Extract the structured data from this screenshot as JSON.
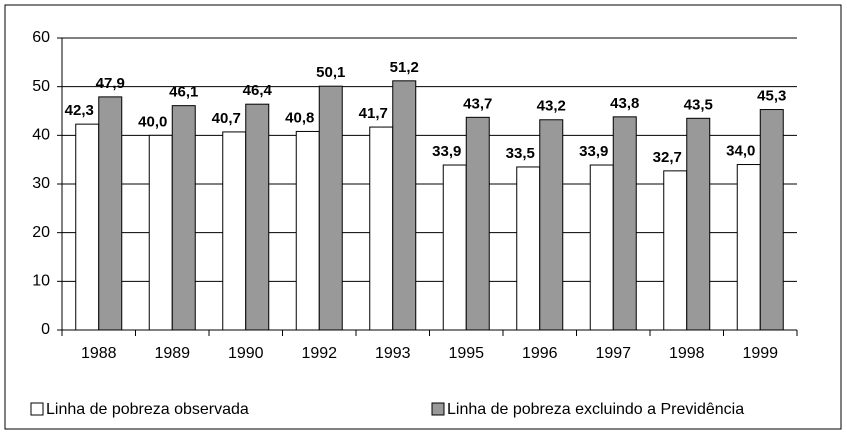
{
  "chart_data": {
    "type": "bar",
    "categories": [
      "1988",
      "1989",
      "1990",
      "1992",
      "1993",
      "1995",
      "1996",
      "1997",
      "1998",
      "1999"
    ],
    "series": [
      {
        "name": "Linha de pobreza observada",
        "color": "#ffffff",
        "values": [
          42.3,
          40.0,
          40.7,
          40.8,
          41.7,
          33.9,
          33.5,
          33.9,
          32.7,
          34.0
        ],
        "value_labels": [
          "42,3",
          "40,0",
          "40,7",
          "40,8",
          "41,7",
          "33,9",
          "33,5",
          "33,9",
          "32,7",
          "34,0"
        ]
      },
      {
        "name": "Linha de pobreza excluindo a Previdência",
        "color": "#999999",
        "values": [
          47.9,
          46.1,
          46.4,
          50.1,
          51.2,
          43.7,
          43.2,
          43.8,
          43.5,
          45.3
        ],
        "value_labels": [
          "47,9",
          "46,1",
          "46,4",
          "50,1",
          "51,2",
          "43,7",
          "43,2",
          "43,8",
          "43,5",
          "45,3"
        ]
      }
    ],
    "ylim": [
      0,
      60
    ],
    "yticks": [
      0,
      10,
      20,
      30,
      40,
      50,
      60
    ],
    "grid": true,
    "legend": "bottom"
  }
}
